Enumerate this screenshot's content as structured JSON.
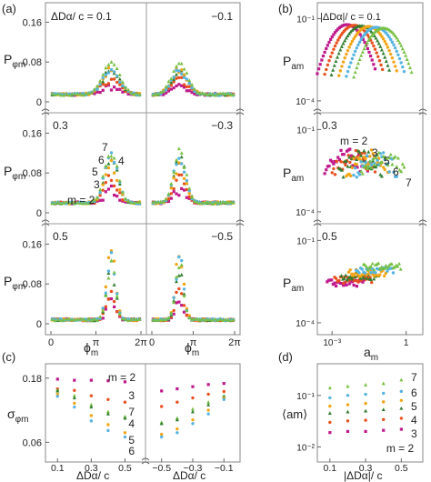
{
  "panel_labels": {
    "a": "(a)",
    "b": "(b)",
    "c": "(c)",
    "d": "(d)"
  },
  "series_colors": {
    "2": "#c0188c",
    "3": "#e8501e",
    "4": "#2f7d2f",
    "5": "#f2a516",
    "6": "#56b4e0",
    "7": "#76c043"
  },
  "chart_data": [
    {
      "id": "a",
      "type": "scatter",
      "ylabel_main": "P",
      "ylabel_sub": "φm",
      "xlabel_main": "ϕ",
      "xlabel_sub": "m",
      "xticks": [
        "0",
        "π",
        "2π"
      ],
      "xlim": [
        0,
        6.2832
      ],
      "ylim": [
        0,
        0.19
      ],
      "yticks": [
        "0",
        "0.08",
        "0.16"
      ],
      "rows": [
        {
          "label_left": "ΔDα/ c = 0.1",
          "label_right": "−0.1",
          "peak_left": 4.2,
          "peak_right": 2.1,
          "heights": {
            "2": 0.015,
            "3": 0.03,
            "4": 0.045,
            "5": 0.05,
            "6": 0.045,
            "7": 0.06
          },
          "base": 0.015,
          "width": 0.6
        },
        {
          "label_left": "0.3",
          "label_right": "−0.3",
          "peak_left": 4.2,
          "peak_right": 2.1,
          "heights": {
            "2": 0.025,
            "3": 0.05,
            "4": 0.09,
            "5": 0.075,
            "6": 0.095,
            "7": 0.105
          },
          "base": 0.02,
          "width": 0.45
        },
        {
          "label_left": "0.5",
          "label_right": "−0.5",
          "peak_left": 4.2,
          "peak_right": 2.1,
          "heights": {
            "2": 0.04,
            "3": 0.06,
            "4": 0.1,
            "5": 0.14,
            "6": 0.12,
            "7": 0.11
          },
          "base": 0.008,
          "width": 0.3
        }
      ],
      "series_labels": [
        {
          "m": "2",
          "text": "m = 2"
        },
        {
          "m": "3",
          "text": "3"
        },
        {
          "m": "5",
          "text": "5"
        },
        {
          "m": "6",
          "text": "6"
        },
        {
          "m": "4",
          "text": "4"
        },
        {
          "m": "7",
          "text": "7"
        }
      ]
    },
    {
      "id": "b",
      "type": "scatter",
      "scale": "log-log",
      "ylabel_main": "P",
      "ylabel_sub": "am",
      "xlabel_main": "a",
      "xlabel_sub": "m",
      "xticks": [
        "10⁻³",
        "1"
      ],
      "xtick_values": [
        0.001,
        1
      ],
      "xlim": [
        0.0003,
        4
      ],
      "ylim": [
        5e-05,
        0.3
      ],
      "yticks": [
        "10⁻⁴",
        "10⁻¹"
      ],
      "ytick_values": [
        0.0001,
        0.1
      ],
      "rows": [
        {
          "label": "|ΔDα|/ c = 0.1"
        },
        {
          "label": "0.3"
        },
        {
          "label": "0.5"
        }
      ],
      "series_labels": [
        {
          "m": "2",
          "text": "m = 2"
        },
        {
          "m": "3",
          "text": "3"
        },
        {
          "m": "5",
          "text": "5"
        },
        {
          "m": "6",
          "text": "6"
        },
        {
          "m": "7",
          "text": "7"
        }
      ]
    },
    {
      "id": "c",
      "type": "scatter",
      "ylabel_main": "σ",
      "ylabel_sub": "φm",
      "xlabel": "ΔDα/ c",
      "ylim": [
        0.03,
        0.2
      ],
      "yticks": [
        0.06,
        0.18
      ],
      "ytick_labels": [
        "0.06",
        "0.18"
      ],
      "left_x": [
        0.1,
        0.2,
        0.3,
        0.4,
        0.5
      ],
      "left_xticks": [
        "0.1",
        "0.3",
        "0.5"
      ],
      "left_xlim": [
        0.05,
        0.6
      ],
      "right_x": [
        -0.5,
        -0.4,
        -0.3,
        -0.2,
        -0.1
      ],
      "right_xticks": [
        "−0.5",
        "−0.3",
        "−0.1"
      ],
      "right_xlim": [
        -0.58,
        -0.02
      ],
      "series": [
        {
          "name": "m = 2",
          "m": "2",
          "left": [
            0.178,
            0.176,
            0.176,
            0.175,
            0.173
          ],
          "right": [
            0.156,
            0.16,
            0.164,
            0.168,
            0.17
          ]
        },
        {
          "name": "3",
          "m": "3",
          "left": [
            0.16,
            0.157,
            0.147,
            0.14,
            0.135
          ],
          "right": [
            0.127,
            0.135,
            0.143,
            0.15,
            0.155
          ]
        },
        {
          "name": "7",
          "m": "7",
          "left": [
            0.158,
            0.147,
            0.13,
            0.117,
            0.108
          ],
          "right": [
            0.097,
            0.105,
            0.122,
            0.135,
            0.147
          ]
        },
        {
          "name": "4",
          "m": "4",
          "left": [
            0.156,
            0.143,
            0.126,
            0.113,
            0.105
          ],
          "right": [
            0.095,
            0.102,
            0.117,
            0.13,
            0.145
          ]
        },
        {
          "name": "5",
          "m": "5",
          "left": [
            0.15,
            0.133,
            0.11,
            0.093,
            0.078
          ],
          "right": [
            0.075,
            0.085,
            0.102,
            0.12,
            0.142
          ]
        },
        {
          "name": "6",
          "m": "6",
          "left": [
            0.146,
            0.126,
            0.1,
            0.082,
            0.07
          ],
          "right": [
            0.07,
            0.078,
            0.095,
            0.113,
            0.14
          ]
        }
      ]
    },
    {
      "id": "d",
      "type": "scatter",
      "scale": "log-y",
      "ylabel": "⟨am⟩",
      "xlabel": "|ΔDα|/ c",
      "x": [
        0.1,
        0.2,
        0.3,
        0.4,
        0.5
      ],
      "xticks": [
        "0.1",
        "0.3",
        "0.5"
      ],
      "xlim": [
        0.05,
        0.6
      ],
      "ylim": [
        0.006,
        0.35
      ],
      "yticks": [
        "10⁻²",
        "10⁻¹"
      ],
      "ytick_values": [
        0.01,
        0.1
      ],
      "series": [
        {
          "name": "7",
          "m": "7",
          "values": [
            0.14,
            0.15,
            0.16,
            0.17,
            0.2
          ]
        },
        {
          "name": "6",
          "m": "6",
          "values": [
            0.09,
            0.1,
            0.105,
            0.11,
            0.12
          ]
        },
        {
          "name": "5",
          "m": "5",
          "values": [
            0.062,
            0.066,
            0.07,
            0.075,
            0.08
          ]
        },
        {
          "name": "4",
          "m": "4",
          "values": [
            0.045,
            0.048,
            0.05,
            0.053,
            0.056
          ]
        },
        {
          "name": "3",
          "m": "3",
          "values": [
            0.03,
            0.032,
            0.033,
            0.034,
            0.036
          ]
        },
        {
          "name": "m = 2",
          "m": "2",
          "values": [
            0.019,
            0.02,
            0.02,
            0.021,
            0.022
          ]
        }
      ]
    }
  ]
}
